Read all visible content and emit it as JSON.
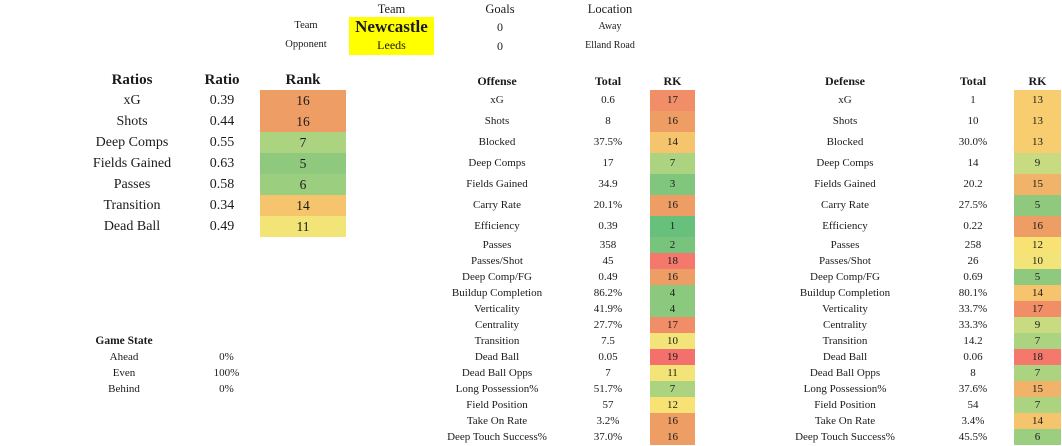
{
  "match": {
    "headers": {
      "team": "Team",
      "goals": "Goals",
      "location": "Location"
    },
    "team_row": {
      "label": "Team",
      "team": "Newcastle",
      "goals": "0",
      "location": "Away"
    },
    "opponent_row": {
      "label": "Opponent",
      "team": "Leeds",
      "goals": "0",
      "location": "Elland Road"
    },
    "highlight_color": "#FFFF00"
  },
  "ratios": {
    "headers": {
      "label": "Ratios",
      "ratio": "Ratio",
      "rank": "Rank"
    },
    "rows": [
      {
        "label": "xG",
        "ratio": "0.39",
        "rank": "16",
        "color": "#EE9E65"
      },
      {
        "label": "Shots",
        "ratio": "0.44",
        "rank": "16",
        "color": "#EE9E65"
      },
      {
        "label": "Deep Comps",
        "ratio": "0.55",
        "rank": "7",
        "color": "#ACD380"
      },
      {
        "label": "Fields Gained",
        "ratio": "0.63",
        "rank": "5",
        "color": "#8FC97E"
      },
      {
        "label": "Passes",
        "ratio": "0.58",
        "rank": "6",
        "color": "#9CCE7F"
      },
      {
        "label": "Transition",
        "ratio": "0.34",
        "rank": "14",
        "color": "#F6C46C"
      },
      {
        "label": "Dead Ball",
        "ratio": "0.49",
        "rank": "11",
        "color": "#F2E476"
      }
    ]
  },
  "game_state": {
    "title": "Game State",
    "rows": [
      {
        "label": "Ahead",
        "value": "0%"
      },
      {
        "label": "Even",
        "value": "100%"
      },
      {
        "label": "Behind",
        "value": "0%"
      }
    ]
  },
  "offense": {
    "headers": {
      "label": "Offense",
      "total": "Total",
      "rank": "RK"
    },
    "rows_top": [
      {
        "label": "xG",
        "total": "0.6",
        "rank": "17",
        "color": "#F18D67"
      },
      {
        "label": "Shots",
        "total": "8",
        "rank": "16",
        "color": "#EE9E65"
      },
      {
        "label": "Blocked",
        "total": "37.5%",
        "rank": "14",
        "color": "#F6C46C"
      },
      {
        "label": "Deep Comps",
        "total": "17",
        "rank": "7",
        "color": "#ACD380"
      },
      {
        "label": "Fields Gained",
        "total": "34.9",
        "rank": "3",
        "color": "#80C67D"
      },
      {
        "label": "Carry Rate",
        "total": "20.1%",
        "rank": "16",
        "color": "#EE9E65"
      },
      {
        "label": "Efficiency",
        "total": "0.39",
        "rank": "1",
        "color": "#68C07D"
      }
    ],
    "rows_bottom": [
      {
        "label": "Passes",
        "total": "358",
        "rank": "2",
        "color": "#79C47D"
      },
      {
        "label": "Passes/Shot",
        "total": "45",
        "rank": "18",
        "color": "#F4796C"
      },
      {
        "label": "Deep Comp/FG",
        "total": "0.49",
        "rank": "16",
        "color": "#EE9E65"
      },
      {
        "label": "Buildup Completion",
        "total": "86.2%",
        "rank": "4",
        "color": "#8BCA7E"
      },
      {
        "label": "Verticality",
        "total": "41.9%",
        "rank": "4",
        "color": "#8BCA7E"
      },
      {
        "label": "Centrality",
        "total": "27.7%",
        "rank": "17",
        "color": "#F18D67"
      },
      {
        "label": "Transition",
        "total": "7.5",
        "rank": "10",
        "color": "#F3E47A"
      },
      {
        "label": "Dead Ball",
        "total": "0.05",
        "rank": "19",
        "color": "#F4706C"
      },
      {
        "label": "Dead Ball Opps",
        "total": "7",
        "rank": "11",
        "color": "#F2E476"
      },
      {
        "label": "Long Possession%",
        "total": "51.7%",
        "rank": "7",
        "color": "#ACD380"
      },
      {
        "label": "Field Position",
        "total": "57",
        "rank": "12",
        "color": "#F8E273"
      },
      {
        "label": "Take On Rate",
        "total": "3.2%",
        "rank": "16",
        "color": "#EE9E65"
      },
      {
        "label": "Deep Touch Success%",
        "total": "37.0%",
        "rank": "16",
        "color": "#EE9E65"
      }
    ]
  },
  "defense": {
    "headers": {
      "label": "Defense",
      "total": "Total",
      "rank": "RK"
    },
    "rows_top": [
      {
        "label": "xG",
        "total": "1",
        "rank": "13",
        "color": "#F7CD6F"
      },
      {
        "label": "Shots",
        "total": "10",
        "rank": "13",
        "color": "#F7CD6F"
      },
      {
        "label": "Blocked",
        "total": "30.0%",
        "rank": "13",
        "color": "#F7CD6F"
      },
      {
        "label": "Deep Comps",
        "total": "14",
        "rank": "9",
        "color": "#C8DB81"
      },
      {
        "label": "Fields Gained",
        "total": "20.2",
        "rank": "15",
        "color": "#F0B369"
      },
      {
        "label": "Carry Rate",
        "total": "27.5%",
        "rank": "5",
        "color": "#8FC97E"
      },
      {
        "label": "Efficiency",
        "total": "0.22",
        "rank": "16",
        "color": "#EE9E65"
      }
    ],
    "rows_bottom": [
      {
        "label": "Passes",
        "total": "258",
        "rank": "12",
        "color": "#F8E273"
      },
      {
        "label": "Passes/Shot",
        "total": "26",
        "rank": "10",
        "color": "#F3E47A"
      },
      {
        "label": "Deep Comp/FG",
        "total": "0.69",
        "rank": "5",
        "color": "#8FC97E"
      },
      {
        "label": "Buildup Completion",
        "total": "80.1%",
        "rank": "14",
        "color": "#F6C46C"
      },
      {
        "label": "Verticality",
        "total": "33.7%",
        "rank": "17",
        "color": "#F18D67"
      },
      {
        "label": "Centrality",
        "total": "33.3%",
        "rank": "9",
        "color": "#C8DB81"
      },
      {
        "label": "Transition",
        "total": "14.2",
        "rank": "7",
        "color": "#ACD380"
      },
      {
        "label": "Dead Ball",
        "total": "0.06",
        "rank": "18",
        "color": "#F4796C"
      },
      {
        "label": "Dead Ball Opps",
        "total": "8",
        "rank": "7",
        "color": "#ACD380"
      },
      {
        "label": "Long Possession%",
        "total": "37.6%",
        "rank": "15",
        "color": "#F0B369"
      },
      {
        "label": "Field Position",
        "total": "54",
        "rank": "7",
        "color": "#ACD380"
      },
      {
        "label": "Take On Rate",
        "total": "3.4%",
        "rank": "14",
        "color": "#F6C46C"
      },
      {
        "label": "Deep Touch Success%",
        "total": "45.5%",
        "rank": "6",
        "color": "#9CCE7F"
      }
    ]
  }
}
